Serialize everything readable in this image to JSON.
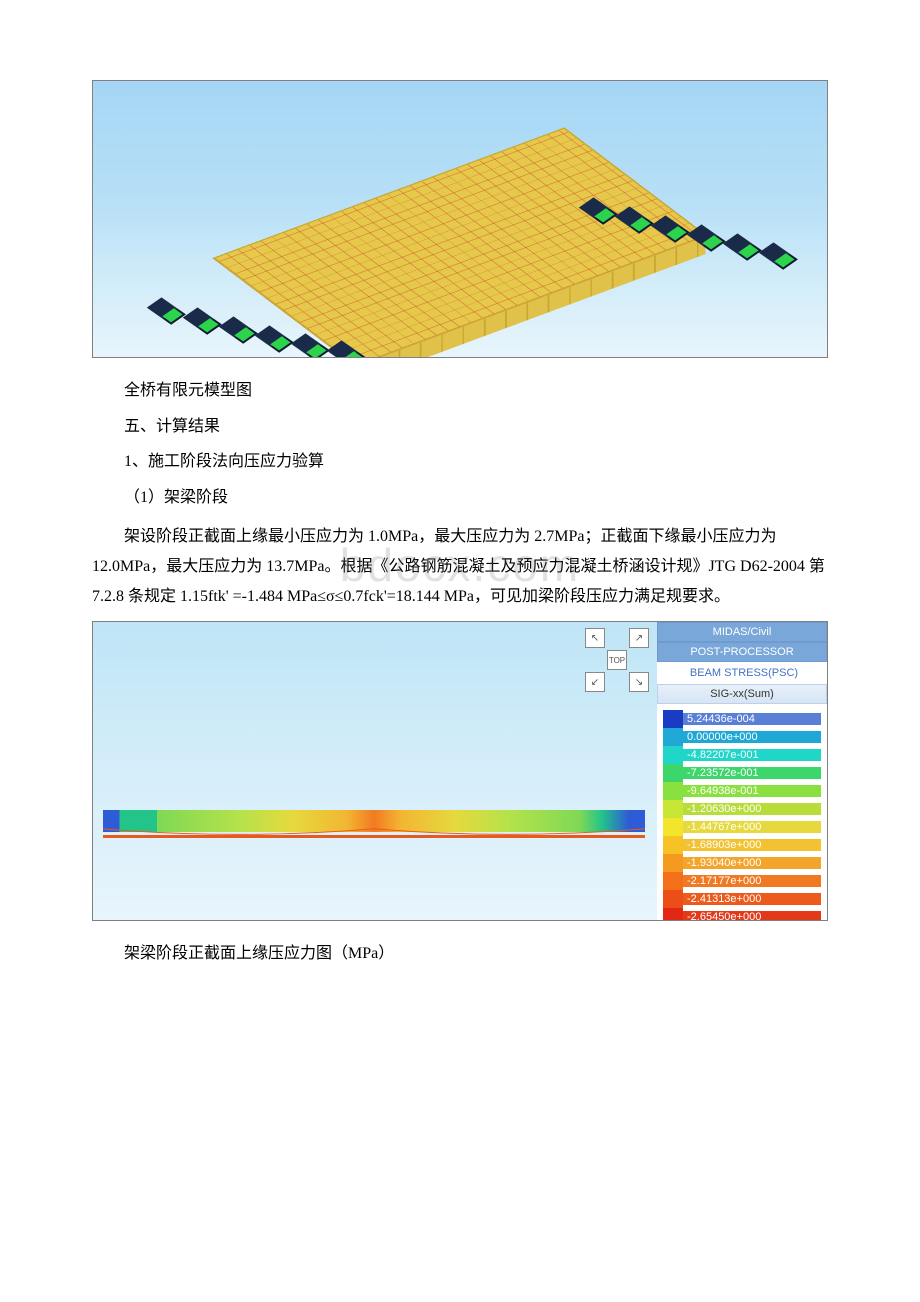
{
  "figure1": {
    "caption": "全桥有限元模型图",
    "sky_gradient": [
      "#a5d6f5",
      "#e8f5fc"
    ],
    "deck_color": "#e6c94a",
    "grid_line_color": "rgba(200,60,40,0.45)",
    "bearing_color": "#1a2b4a",
    "pad_color": "#2bd44a"
  },
  "section5": {
    "heading": "五、计算结果",
    "sub1": "1、施工阶段法向压应力验算",
    "sub1_item1": "（1）架梁阶段",
    "paragraph": "架设阶段正截面上缘最小压应力为 1.0MPa，最大压应力为 2.7MPa；正截面下缘最小压应力为 12.0MPa，最大压应力为 13.7MPa。根据《公路钢筋混凝土及预应力混凝土桥涵设计规》JTG D62-2004 第 7.2.8 条规定 1.15ftk' =-1.484 MPa≤σ≤0.7fck'=18.144 MPa，可见加梁阶段压应力满足规要求。"
  },
  "watermark": "bdocx.com",
  "figure2": {
    "caption": "架梁阶段正截面上缘压应力图（MPa）",
    "software_line1": "MIDAS/Civil",
    "software_line2": "POST-PROCESSOR",
    "result_type": "BEAM STRESS(PSC)",
    "component": "SIG-xx(Sum)",
    "nav_center": "TOP",
    "background_gradient": [
      "#bfe5f6",
      "#e8f5fc"
    ],
    "colorbar": [
      {
        "color": "#1a3cc4",
        "bg": "#5a7fd6",
        "label": "5.24436e-004"
      },
      {
        "color": "#1fa8d6",
        "bg": "#1fa8d6",
        "label": "0.00000e+000"
      },
      {
        "color": "#1fd6c8",
        "bg": "#1fd6c8",
        "label": "-4.82207e-001"
      },
      {
        "color": "#3dd66a",
        "bg": "#3dd66a",
        "label": "-7.23572e-001"
      },
      {
        "color": "#8ae03e",
        "bg": "#8ae03e",
        "label": "-9.64938e-001"
      },
      {
        "color": "#c7e636",
        "bg": "#b8dc3a",
        "label": "-1.20630e+000"
      },
      {
        "color": "#f2e52c",
        "bg": "#e6d93e",
        "label": "-1.44767e+000"
      },
      {
        "color": "#f7c225",
        "bg": "#f2c232",
        "label": "-1.68903e+000"
      },
      {
        "color": "#f59a20",
        "bg": "#f2a52a",
        "label": "-1.93040e+000"
      },
      {
        "color": "#f36f1a",
        "bg": "#f07a22",
        "label": "-2.17177e+000"
      },
      {
        "color": "#ec4e18",
        "bg": "#ec5a1c",
        "label": "-2.41313e+000"
      },
      {
        "color": "#e22814",
        "bg": "#e23a18",
        "label": "-2.65450e+000"
      }
    ],
    "gradient_stops": [
      "#2e5bd6",
      "#23c48a",
      "#7fd856",
      "#b4e24a",
      "#e6d93e",
      "#f2b632",
      "#f27a22"
    ]
  }
}
